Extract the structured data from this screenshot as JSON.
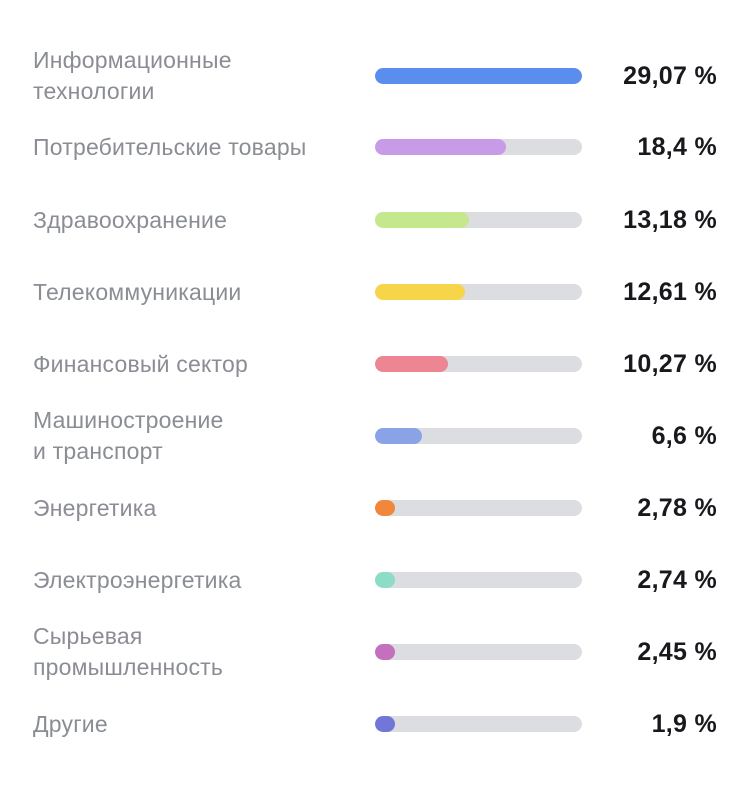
{
  "chart_data": {
    "type": "bar",
    "orientation": "horizontal",
    "title": "",
    "xlabel": "",
    "ylabel": "",
    "xlim": [
      0,
      29.07
    ],
    "unit": "%",
    "categories": [
      "Информационные\nтехнологии",
      "Потребительские товары",
      "Здравоохранение",
      "Телекоммуникации",
      "Финансовый сектор",
      "Машиностроение\nи транспорт",
      "Энергетика",
      "Электроэнергетика",
      "Сырьевая\nпромышленность",
      "Другие"
    ],
    "values": [
      29.07,
      18.4,
      13.18,
      12.61,
      10.27,
      6.6,
      2.78,
      2.74,
      2.45,
      1.9
    ],
    "value_labels": [
      "29,07 %",
      "18,4 %",
      "13,18 %",
      "12,61 %",
      "10,27 %",
      "6,6 %",
      "2,78 %",
      "2,74 %",
      "2,45 %",
      "1,9 %"
    ],
    "colors": [
      "#5b8def",
      "#c89be9",
      "#c5e88e",
      "#f6d548",
      "#ee8592",
      "#8aa3e6",
      "#f0873a",
      "#8ddcc6",
      "#c470bd",
      "#7276d9"
    ],
    "track_color": "#dcdde0"
  }
}
